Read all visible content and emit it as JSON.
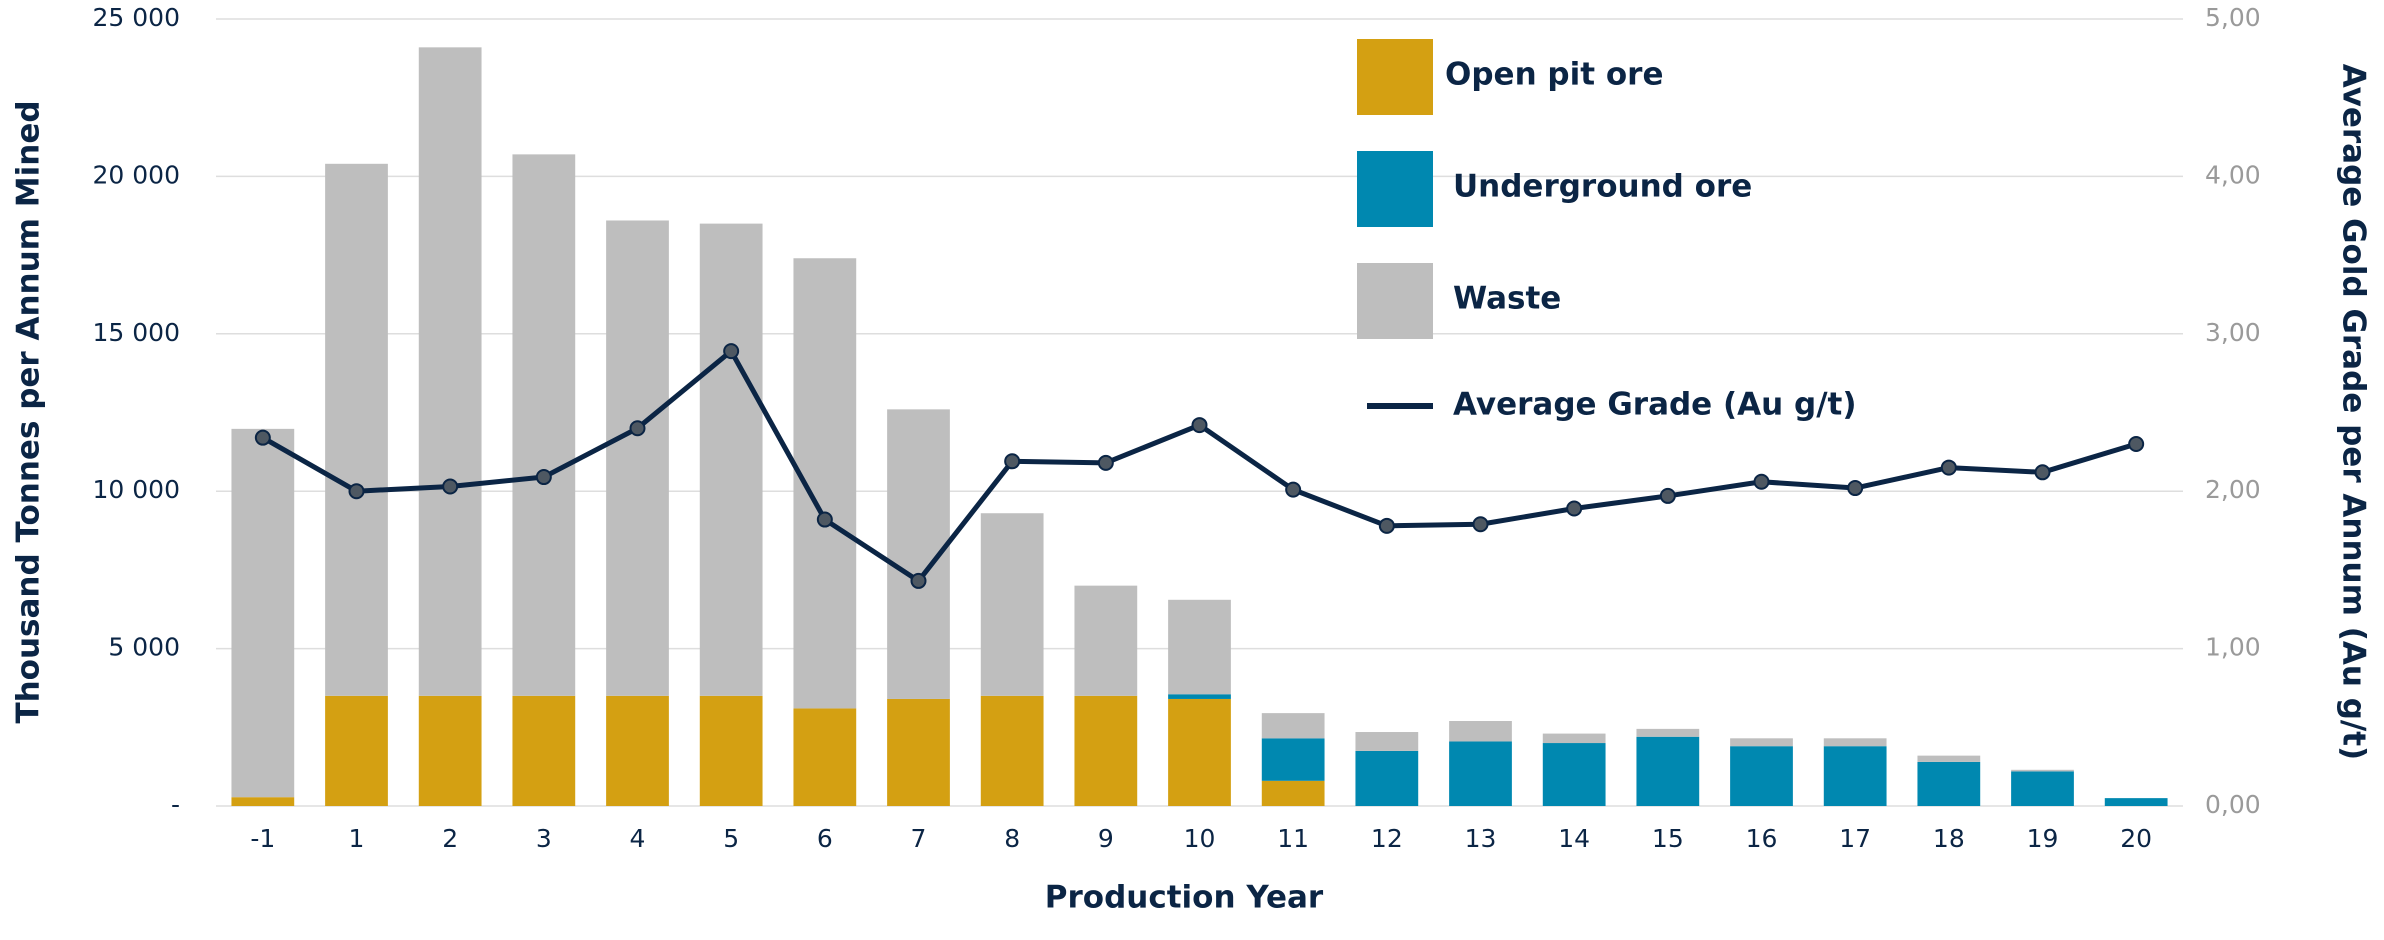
{
  "chart_data": {
    "type": "bar",
    "x_label": "Production Year",
    "y_label": "Thousand Tonnes per Annum Mined",
    "y2_label": "Average Gold Grade per Annum (Au g/t)",
    "categories": [
      "-1",
      "1",
      "2",
      "3",
      "4",
      "5",
      "6",
      "7",
      "8",
      "9",
      "10",
      "11",
      "12",
      "13",
      "14",
      "15",
      "16",
      "17",
      "18",
      "19",
      "20"
    ],
    "series": [
      {
        "name": "Open pit ore",
        "type": "bar",
        "color": "#d4a012",
        "values": [
          280,
          3500,
          3500,
          3500,
          3500,
          3500,
          3100,
          3400,
          3500,
          3500,
          3400,
          800,
          0,
          0,
          0,
          0,
          0,
          0,
          0,
          0,
          0
        ]
      },
      {
        "name": "Underground ore",
        "type": "bar",
        "color": "#0088b0",
        "values": [
          0,
          0,
          0,
          0,
          0,
          0,
          0,
          0,
          0,
          0,
          150,
          1350,
          1750,
          2050,
          2000,
          2200,
          1900,
          1900,
          1400,
          1100,
          250
        ]
      },
      {
        "name": "Waste",
        "type": "bar",
        "color": "#bebebe",
        "values": [
          11700,
          16900,
          20600,
          17200,
          15100,
          15000,
          14300,
          9200,
          5800,
          3500,
          3000,
          800,
          600,
          650,
          300,
          250,
          250,
          250,
          200,
          50,
          0
        ]
      },
      {
        "name": "Average Grade (Au g/t)",
        "type": "line",
        "axis": "y2",
        "color": "#0b2545",
        "values": [
          2.34,
          2.0,
          2.03,
          2.09,
          2.4,
          2.89,
          1.82,
          1.43,
          2.19,
          2.18,
          2.42,
          2.01,
          1.78,
          1.79,
          1.89,
          1.97,
          2.06,
          2.02,
          2.15,
          2.12,
          2.3
        ]
      }
    ],
    "ylim": [
      0,
      25000
    ],
    "yticks": [
      {
        "value": 0,
        "label": "-"
      },
      {
        "value": 5000,
        "label": "5 000"
      },
      {
        "value": 10000,
        "label": "10 000"
      },
      {
        "value": 15000,
        "label": "15 000"
      },
      {
        "value": 20000,
        "label": "20 000"
      },
      {
        "value": 25000,
        "label": "25 000"
      }
    ],
    "y2lim": [
      0,
      5
    ],
    "y2ticks": [
      {
        "value": 0,
        "label": "0,00"
      },
      {
        "value": 1,
        "label": "1,00"
      },
      {
        "value": 2,
        "label": "2,00"
      },
      {
        "value": 3,
        "label": "3,00"
      },
      {
        "value": 4,
        "label": "4,00"
      },
      {
        "value": 5,
        "label": "5,00"
      }
    ],
    "grid": true,
    "legend": "top-right"
  }
}
